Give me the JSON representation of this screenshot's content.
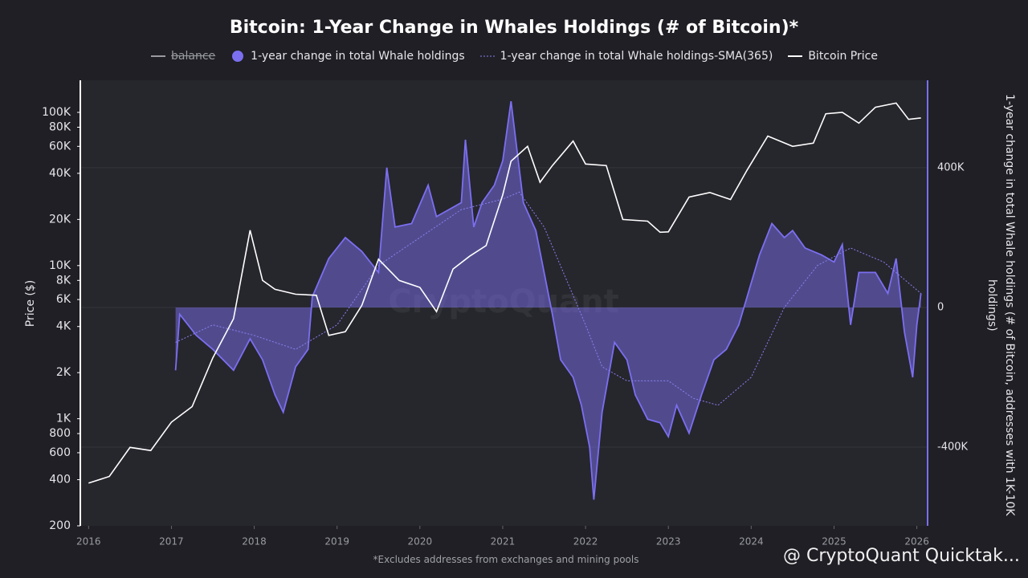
{
  "chart_data": {
    "type": "line",
    "title": "Bitcoin: 1-Year Change in Whales Holdings (# of Bitcoin)*",
    "ylabel": "Price ($)",
    "y2label": "1-year change in total Whale holdings (# of Bitcoin, addresses with 1K-10K holdings)",
    "footnote": "*Excludes addresses from exchanges and mining pools",
    "watermark": "CryptoQuant",
    "credit": "@ CryptoQuant Quicktak...",
    "log_y": true,
    "xlim": [
      2015.9,
      2026.13
    ],
    "xticks": [
      2016,
      2017,
      2018,
      2019,
      2020,
      2021,
      2022,
      2023,
      2024,
      2025,
      2026
    ],
    "ylim": [
      200,
      162000
    ],
    "yticks": [
      200,
      400,
      600,
      800,
      {
        "value": 1000,
        "label": "1K"
      },
      {
        "value": 2000,
        "label": "2K"
      },
      {
        "value": 4000,
        "label": "4K"
      },
      {
        "value": 6000,
        "label": "6K"
      },
      {
        "value": 8000,
        "label": "8K"
      },
      {
        "value": 10000,
        "label": "10K"
      },
      {
        "value": 20000,
        "label": "20K"
      },
      {
        "value": 40000,
        "label": "40K"
      },
      {
        "value": 60000,
        "label": "60K"
      },
      {
        "value": 80000,
        "label": "80K"
      },
      {
        "value": 100000,
        "label": "100K"
      }
    ],
    "y2lim": [
      -625000,
      650000
    ],
    "y2ticks": [
      {
        "value": -400000,
        "label": "-400K"
      },
      0,
      {
        "value": 400000,
        "label": "400K"
      }
    ],
    "series": [
      {
        "name": "balance",
        "color": "#9a9aa2",
        "visible": false,
        "x": [],
        "values": []
      },
      {
        "name": "1-year change in total Whale holdings",
        "color": "#7b6ff0",
        "axis": "y2",
        "style": "area",
        "x": [
          2017.05,
          2017.1,
          2017.3,
          2017.5,
          2017.75,
          2017.95,
          2018.1,
          2018.25,
          2018.35,
          2018.5,
          2018.65,
          2018.7,
          2018.9,
          2019.1,
          2019.3,
          2019.5,
          2019.6,
          2019.7,
          2019.9,
          2020.1,
          2020.2,
          2020.35,
          2020.5,
          2020.55,
          2020.65,
          2020.75,
          2020.9,
          2021.0,
          2021.1,
          2021.25,
          2021.4,
          2021.5,
          2021.6,
          2021.7,
          2021.85,
          2021.95,
          2022.05,
          2022.1,
          2022.2,
          2022.35,
          2022.5,
          2022.6,
          2022.75,
          2022.9,
          2023.0,
          2023.1,
          2023.25,
          2023.4,
          2023.55,
          2023.7,
          2023.85,
          2023.95,
          2024.1,
          2024.25,
          2024.4,
          2024.5,
          2024.65,
          2024.85,
          2025.0,
          2025.1,
          2025.2,
          2025.3,
          2025.5,
          2025.65,
          2025.75,
          2025.85,
          2025.95,
          2026.0,
          2026.05
        ],
        "values": [
          -180000,
          -20000,
          -80000,
          -120000,
          -180000,
          -90000,
          -150000,
          -250000,
          -300000,
          -170000,
          -120000,
          30000,
          140000,
          200000,
          160000,
          100000,
          400000,
          230000,
          240000,
          350000,
          260000,
          280000,
          300000,
          480000,
          230000,
          300000,
          350000,
          420000,
          590000,
          300000,
          220000,
          100000,
          -20000,
          -150000,
          -200000,
          -280000,
          -400000,
          -550000,
          -300000,
          -100000,
          -150000,
          -250000,
          -320000,
          -330000,
          -370000,
          -280000,
          -360000,
          -250000,
          -150000,
          -120000,
          -50000,
          30000,
          150000,
          240000,
          200000,
          220000,
          170000,
          150000,
          130000,
          180000,
          -50000,
          100000,
          100000,
          40000,
          140000,
          -70000,
          -200000,
          -50000,
          40000
        ]
      },
      {
        "name": "1-year change in total Whale holdings-SMA(365)",
        "color": "#8a80f0",
        "axis": "y2",
        "style": "dotted",
        "x": [
          2017.05,
          2017.5,
          2018.0,
          2018.5,
          2019.0,
          2019.5,
          2020.0,
          2020.5,
          2021.0,
          2021.2,
          2021.5,
          2022.0,
          2022.2,
          2022.5,
          2023.0,
          2023.3,
          2023.6,
          2024.0,
          2024.4,
          2024.8,
          2025.2,
          2025.6,
          2026.05
        ],
        "values": [
          -100000,
          -50000,
          -80000,
          -120000,
          -50000,
          120000,
          200000,
          280000,
          310000,
          330000,
          230000,
          -50000,
          -170000,
          -210000,
          -210000,
          -260000,
          -280000,
          -200000,
          0,
          120000,
          170000,
          130000,
          40000
        ]
      },
      {
        "name": "Bitcoin Price",
        "color": "#ffffff",
        "axis": "y",
        "x": [
          2016.0,
          2016.25,
          2016.5,
          2016.75,
          2017.0,
          2017.25,
          2017.5,
          2017.75,
          2017.95,
          2018.1,
          2018.25,
          2018.5,
          2018.75,
          2018.9,
          2019.1,
          2019.3,
          2019.5,
          2019.75,
          2020.0,
          2020.2,
          2020.4,
          2020.6,
          2020.8,
          2021.0,
          2021.1,
          2021.3,
          2021.45,
          2021.6,
          2021.85,
          2022.0,
          2022.25,
          2022.45,
          2022.75,
          2022.9,
          2023.0,
          2023.25,
          2023.5,
          2023.75,
          2023.95,
          2024.2,
          2024.5,
          2024.75,
          2024.9,
          2025.1,
          2025.3,
          2025.5,
          2025.75,
          2025.9,
          2026.05
        ],
        "values": [
          380,
          420,
          650,
          620,
          950,
          1200,
          2500,
          4500,
          17000,
          8000,
          7000,
          6500,
          6400,
          3500,
          3700,
          5500,
          11000,
          8000,
          7200,
          5000,
          9500,
          11500,
          13500,
          29000,
          48000,
          60000,
          35000,
          45000,
          65000,
          46000,
          45000,
          20000,
          19500,
          16500,
          16600,
          28000,
          30000,
          27000,
          42000,
          70000,
          60000,
          63000,
          98000,
          100000,
          85000,
          108000,
          115000,
          90000,
          92000
        ]
      }
    ]
  }
}
